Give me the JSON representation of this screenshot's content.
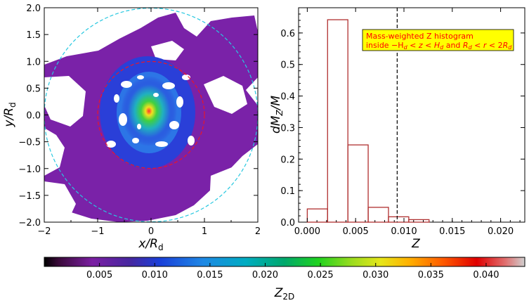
{
  "chart_data": [
    {
      "type": "heatmap",
      "xlabel": "x/R",
      "xlabel_sub": "d",
      "ylabel": "y/R",
      "ylabel_sub": "d",
      "xlim": [
        -2,
        2
      ],
      "ylim": [
        -2,
        2
      ],
      "xticks": [
        -2,
        -1,
        0,
        1,
        2
      ],
      "yticks": [
        -2.0,
        -1.5,
        -1.0,
        -0.5,
        0.0,
        0.5,
        1.0,
        1.5,
        2.0
      ],
      "circles": [
        {
          "radius": 1,
          "color": "#e8162a",
          "style": "dashed"
        },
        {
          "radius": 2,
          "color": "#27c8e0",
          "style": "dashed"
        }
      ]
    },
    {
      "type": "bar",
      "subtype": "step-histogram",
      "xlabel": "Z",
      "ylabel": "dM",
      "ylabel_sub": "Z",
      "ylabel_tail": "/M",
      "xlim": [
        -0.0009,
        0.0225
      ],
      "ylim": [
        0,
        0.68
      ],
      "xticks": [
        0.0,
        0.005,
        0.01,
        0.015,
        0.02
      ],
      "xtick_labels": [
        "0.000",
        "0.005",
        "0.010",
        "0.015",
        "0.020"
      ],
      "yticks": [
        0.0,
        0.1,
        0.2,
        0.3,
        0.4,
        0.5,
        0.6
      ],
      "ytick_labels": [
        "0.0",
        "0.1",
        "0.2",
        "0.3",
        "0.4",
        "0.5",
        "0.6"
      ],
      "bin_edges": [
        0.0,
        0.0021,
        0.0042,
        0.0063,
        0.0084,
        0.0105,
        0.0126,
        0.0147
      ],
      "values": [
        0.042,
        0.642,
        0.245,
        0.047,
        0.017,
        0.008,
        0.0
      ],
      "vline_x": 0.0093,
      "line_color": "#b03030",
      "annotation": {
        "line1": "Mass-weighted Z histogram",
        "line2": "inside −H",
        "bg": "#ffff00",
        "fg": "#ff0000"
      }
    },
    {
      "type": "colorbar",
      "xlabel": "Z",
      "xlabel_sub": "2D",
      "lim": [
        0.0,
        0.0435
      ],
      "ticks": [
        0.005,
        0.01,
        0.015,
        0.02,
        0.025,
        0.03,
        0.035,
        0.04
      ],
      "tick_labels": [
        "0.005",
        "0.010",
        "0.015",
        "0.020",
        "0.025",
        "0.030",
        "0.035",
        "0.040"
      ]
    }
  ]
}
